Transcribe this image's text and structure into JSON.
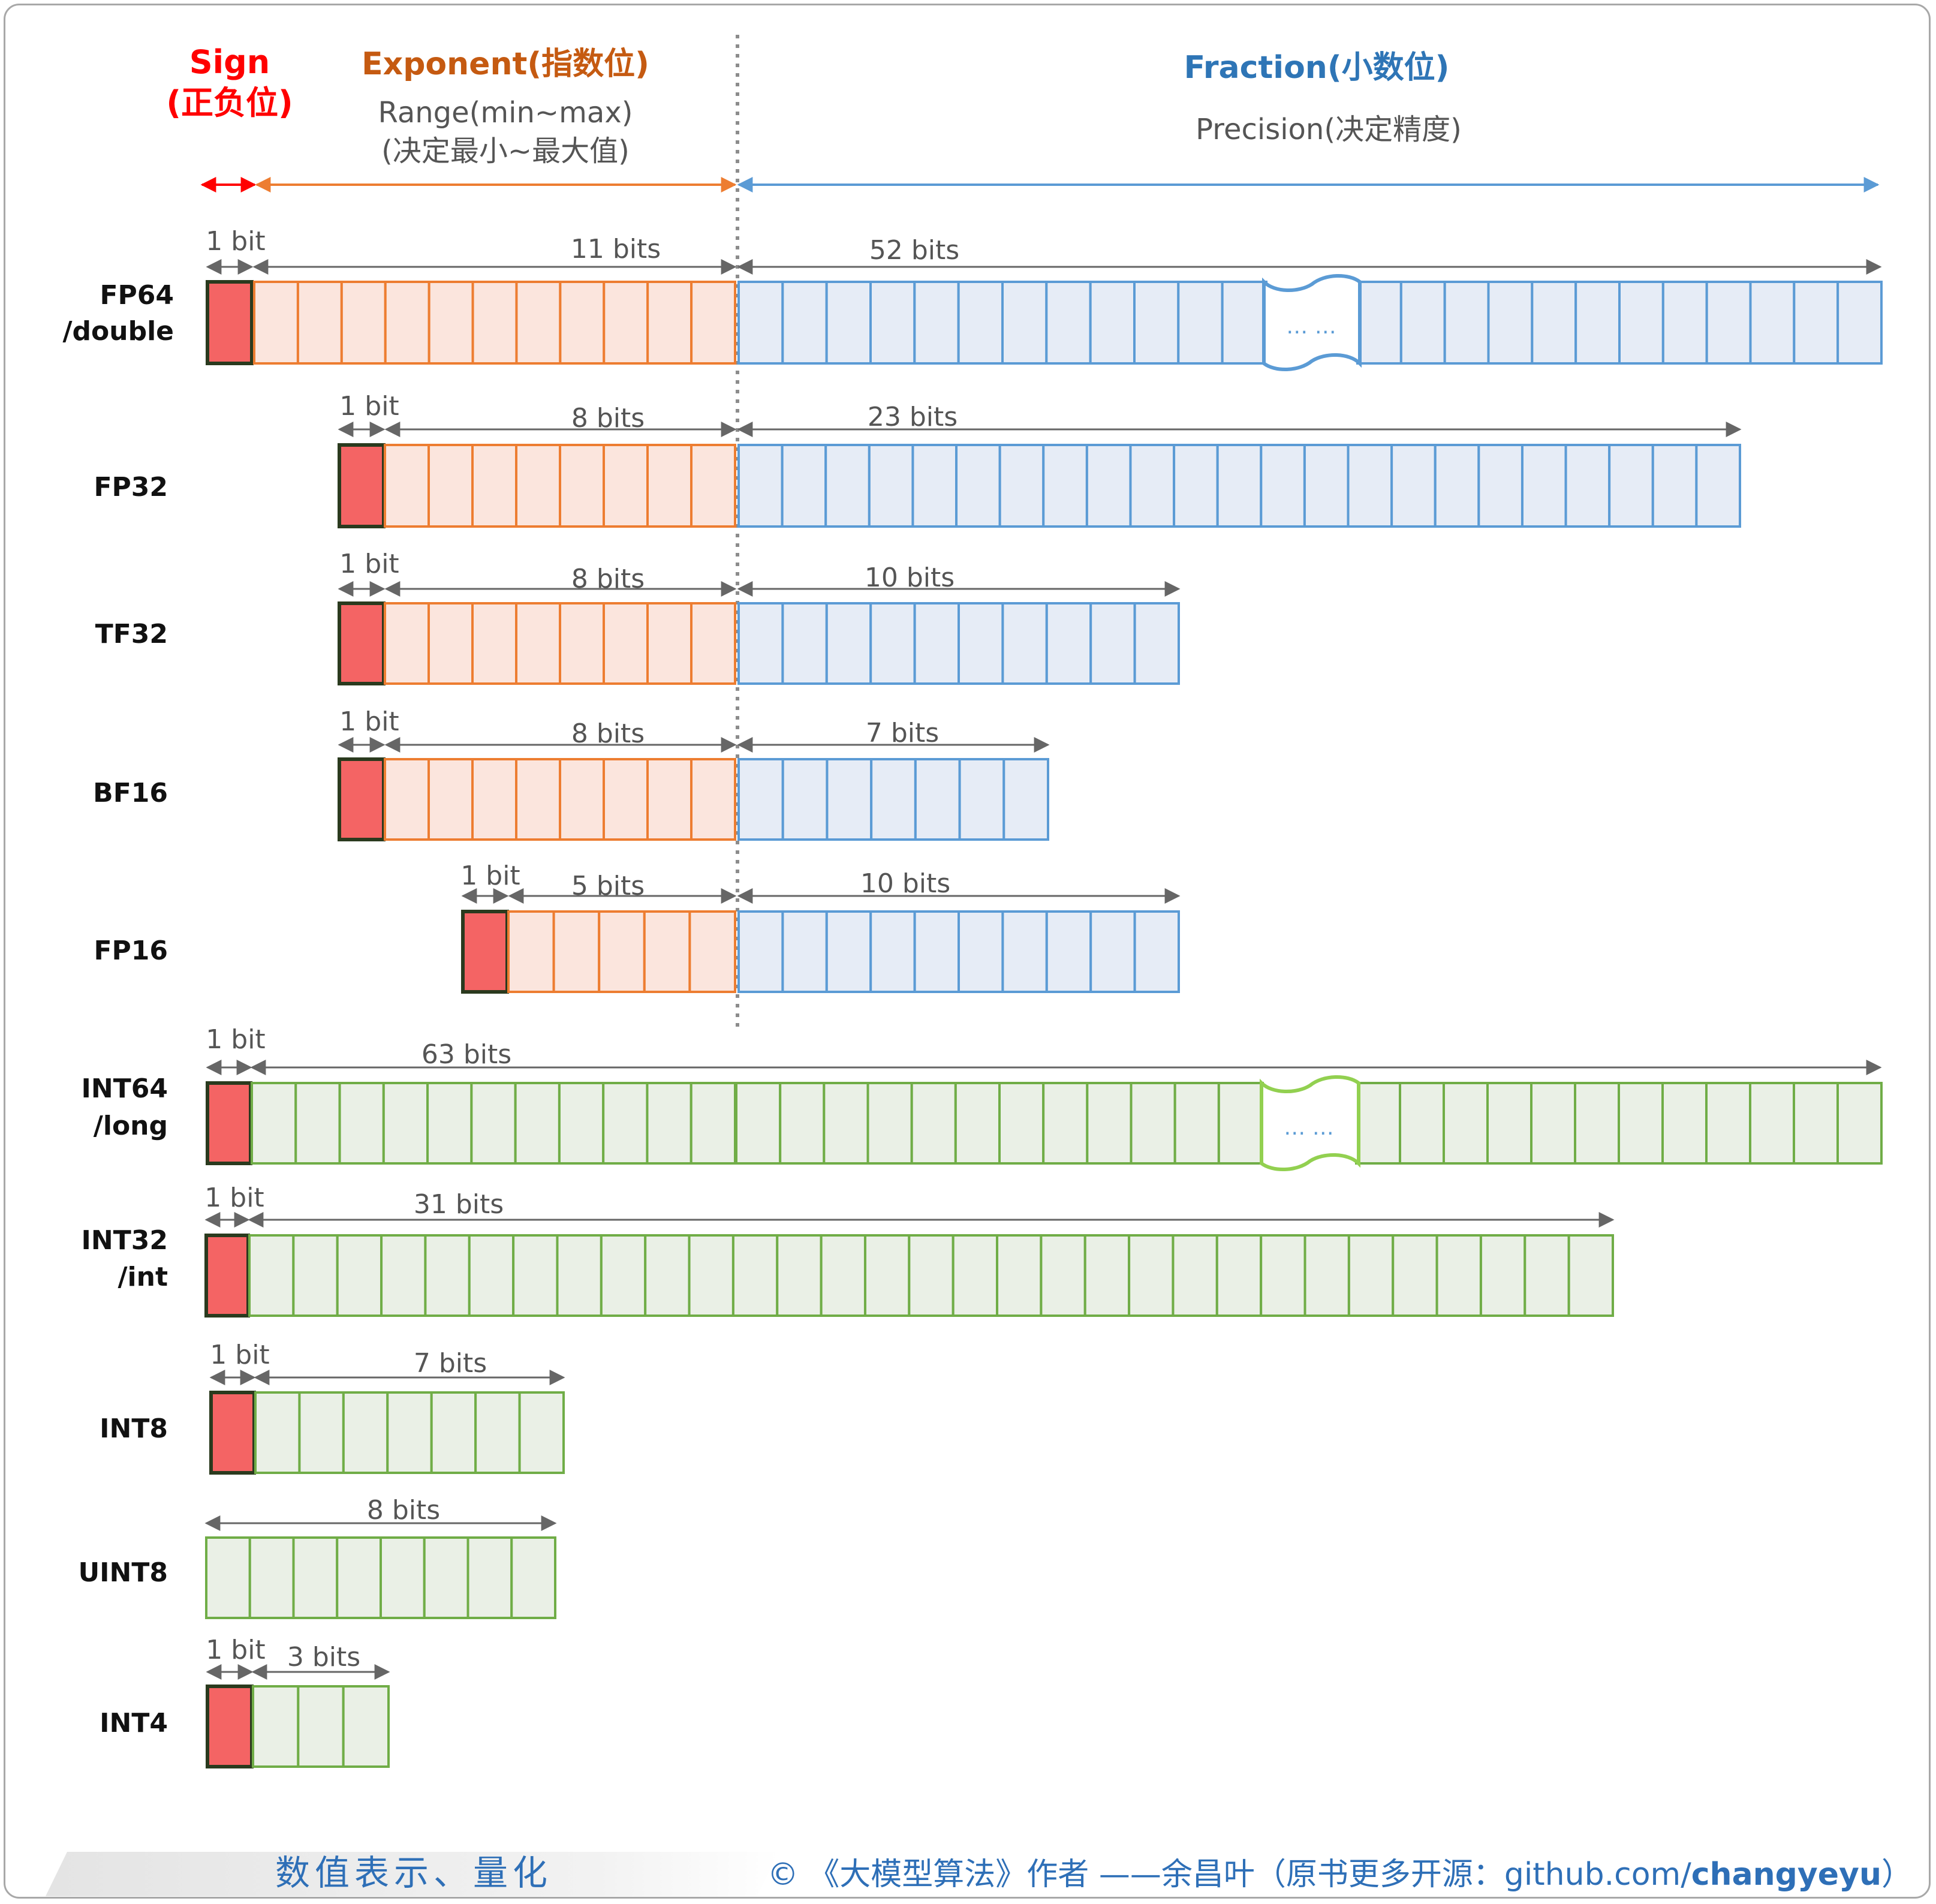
{
  "headers": {
    "sign": {
      "title": "Sign",
      "subtitle": "(正负位)"
    },
    "exponent": {
      "title": "Exponent(指数位)",
      "line1": "Range(min~max)",
      "line2": "(决定最小~最大值)"
    },
    "fraction": {
      "title": "Fraction(小数位)",
      "subtitle": "Precision(决定精度)"
    }
  },
  "colors": {
    "sign": "#f46464",
    "sign_border": "#2a3a1e",
    "exponent_fill": "#fbe5dd",
    "exponent_border": "#ed7d31",
    "fraction_fill": "#e6ecf6",
    "fraction_border": "#5b9bd5",
    "int_fill": "#eaf0e6",
    "int_border": "#70ad47",
    "int_break_border": "#92d050",
    "header_sign": "#ff0000",
    "header_exponent": "#c55a11",
    "header_fraction": "#2e75b6"
  },
  "formats": [
    {
      "id": "fp64",
      "label_lines": [
        "FP64",
        "/double"
      ],
      "sign_label": "1 bit",
      "exponent_label": "11 bits",
      "exponent_bits": 11,
      "fraction_label": "52 bits",
      "fraction_bits": 52,
      "ellipsis": "… …"
    },
    {
      "id": "fp32",
      "label_lines": [
        "FP32"
      ],
      "sign_label": "1 bit",
      "exponent_label": "8 bits",
      "exponent_bits": 8,
      "fraction_label": "23 bits",
      "fraction_bits": 23
    },
    {
      "id": "tf32",
      "label_lines": [
        "TF32"
      ],
      "sign_label": "1 bit",
      "exponent_label": "8 bits",
      "exponent_bits": 8,
      "fraction_label": "10 bits",
      "fraction_bits": 10
    },
    {
      "id": "bf16",
      "label_lines": [
        "BF16"
      ],
      "sign_label": "1 bit",
      "exponent_label": "8 bits",
      "exponent_bits": 8,
      "fraction_label": "7 bits",
      "fraction_bits": 7
    },
    {
      "id": "fp16",
      "label_lines": [
        "FP16"
      ],
      "sign_label": "1 bit",
      "exponent_label": "5 bits",
      "exponent_bits": 5,
      "fraction_label": "10 bits",
      "fraction_bits": 10
    },
    {
      "id": "int64",
      "label_lines": [
        "INT64",
        "/long"
      ],
      "sign_label": "1 bit",
      "value_label": "63 bits",
      "value_bits": 63,
      "ellipsis": "… …"
    },
    {
      "id": "int32",
      "label_lines": [
        "INT32",
        "/int"
      ],
      "sign_label": "1 bit",
      "value_label": "31 bits",
      "value_bits": 31
    },
    {
      "id": "int8",
      "label_lines": [
        "INT8"
      ],
      "sign_label": "1 bit",
      "value_label": "7 bits",
      "value_bits": 7
    },
    {
      "id": "uint8",
      "label_lines": [
        "UINT8"
      ],
      "value_label": "8 bits",
      "value_bits": 8
    },
    {
      "id": "int4",
      "label_lines": [
        "INT4"
      ],
      "sign_label": "1 bit",
      "value_label": "3 bits",
      "value_bits": 3
    }
  ],
  "footer": {
    "title": "数值表示、量化",
    "credit_prefix": "© 《大模型算法》作者 ——余昌叶（原书更多开源：github.com/",
    "credit_handle": "changyeyu",
    "credit_suffix": "）"
  }
}
